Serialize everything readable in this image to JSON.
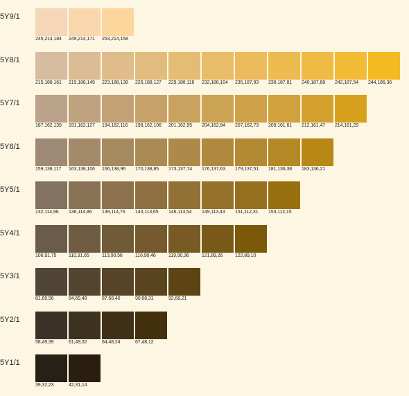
{
  "rows": [
    {
      "label": "5Y9/1",
      "swatches": [
        {
          "rgb": "245,214,184",
          "hex": "#f5d6b8"
        },
        {
          "rgb": "249,214,171",
          "hex": "#f9d6ab"
        },
        {
          "rgb": "253,214,158",
          "hex": "#fdd69e"
        }
      ]
    },
    {
      "label": "5Y8/1",
      "swatches": [
        {
          "rgb": "215,188,161",
          "hex": "#d7bca1"
        },
        {
          "rgb": "219,188,149",
          "hex": "#dbbc95"
        },
        {
          "rgb": "223,188,138",
          "hex": "#dfbc8a"
        },
        {
          "rgb": "226,188,127",
          "hex": "#e2bc7f"
        },
        {
          "rgb": "229,188,116",
          "hex": "#e5bc74"
        },
        {
          "rgb": "232,188,104",
          "hex": "#e8bc68"
        },
        {
          "rgb": "235,187,93",
          "hex": "#ebbb5d"
        },
        {
          "rgb": "238,187,81",
          "hex": "#eebb51"
        },
        {
          "rgb": "240,187,68",
          "hex": "#f0bb44"
        },
        {
          "rgb": "242,187,54",
          "hex": "#f2bb36"
        },
        {
          "rgb": "244,186,36",
          "hex": "#f4ba24"
        }
      ]
    },
    {
      "label": "5Y7/1",
      "swatches": [
        {
          "rgb": "187,162,139",
          "hex": "#bba28b"
        },
        {
          "rgb": "191,162,127",
          "hex": "#bfa27f"
        },
        {
          "rgb": "194,162,116",
          "hex": "#c2a274"
        },
        {
          "rgb": "198,162,106",
          "hex": "#c6a26a"
        },
        {
          "rgb": "201,162,95",
          "hex": "#c9a25f"
        },
        {
          "rgb": "204,162,84",
          "hex": "#cca254"
        },
        {
          "rgb": "207,162,73",
          "hex": "#cfa249"
        },
        {
          "rgb": "209,161,61",
          "hex": "#d1a13d"
        },
        {
          "rgb": "212,161,47",
          "hex": "#d4a12f"
        },
        {
          "rgb": "214,161,29",
          "hex": "#d6a11d"
        }
      ]
    },
    {
      "label": "5Y6/1",
      "swatches": [
        {
          "rgb": "159,138,117",
          "hex": "#9f8a75"
        },
        {
          "rgb": "163,138,106",
          "hex": "#a38a6a"
        },
        {
          "rgb": "166,138,96",
          "hex": "#a68a60"
        },
        {
          "rgb": "170,138,85",
          "hex": "#aa8a55"
        },
        {
          "rgb": "173,137,74",
          "hex": "#ad894a"
        },
        {
          "rgb": "176,137,63",
          "hex": "#b0893f"
        },
        {
          "rgb": "179,137,51",
          "hex": "#b38933"
        },
        {
          "rgb": "181,136,38",
          "hex": "#b58826"
        },
        {
          "rgb": "183,136,21",
          "hex": "#b78815"
        }
      ]
    },
    {
      "label": "5Y5/1",
      "swatches": [
        {
          "rgb": "132,114,96",
          "hex": "#847260"
        },
        {
          "rgb": "136,114,86",
          "hex": "#887256"
        },
        {
          "rgb": "139,114,76",
          "hex": "#8b724c"
        },
        {
          "rgb": "143,113,65",
          "hex": "#8f7141"
        },
        {
          "rgb": "146,113,54",
          "hex": "#927136"
        },
        {
          "rgb": "149,113,43",
          "hex": "#95712b"
        },
        {
          "rgb": "151,112,31",
          "hex": "#97701f"
        },
        {
          "rgb": "153,112,15",
          "hex": "#99700f"
        }
      ]
    },
    {
      "label": "5Y4/1",
      "swatches": [
        {
          "rgb": "106,91,75",
          "hex": "#6a5b4b"
        },
        {
          "rgb": "110,91,65",
          "hex": "#6e5b41"
        },
        {
          "rgb": "113,90,56",
          "hex": "#715a38"
        },
        {
          "rgb": "116,90,46",
          "hex": "#745a2e"
        },
        {
          "rgb": "119,90,36",
          "hex": "#775a24"
        },
        {
          "rgb": "121,89,26",
          "hex": "#79591a"
        },
        {
          "rgb": "122,89,10",
          "hex": "#7a590a"
        }
      ]
    },
    {
      "label": "5Y3/1",
      "swatches": [
        {
          "rgb": "81,69,56",
          "hex": "#514538"
        },
        {
          "rgb": "84,69,48",
          "hex": "#544530"
        },
        {
          "rgb": "87,68,40",
          "hex": "#574428"
        },
        {
          "rgb": "90,68,31",
          "hex": "#5a441f"
        },
        {
          "rgb": "92,68,21",
          "hex": "#5c4415"
        }
      ]
    },
    {
      "label": "5Y2/1",
      "swatches": [
        {
          "rgb": "58,49,39",
          "hex": "#3a3127"
        },
        {
          "rgb": "61,49,32",
          "hex": "#3d3120"
        },
        {
          "rgb": "64,48,24",
          "hex": "#403018"
        },
        {
          "rgb": "67,48,12",
          "hex": "#43300c"
        }
      ]
    },
    {
      "label": "5Y1/1",
      "swatches": [
        {
          "rgb": "39,32,23",
          "hex": "#272017"
        },
        {
          "rgb": "42,31,14",
          "hex": "#2a1f0e"
        }
      ]
    }
  ]
}
